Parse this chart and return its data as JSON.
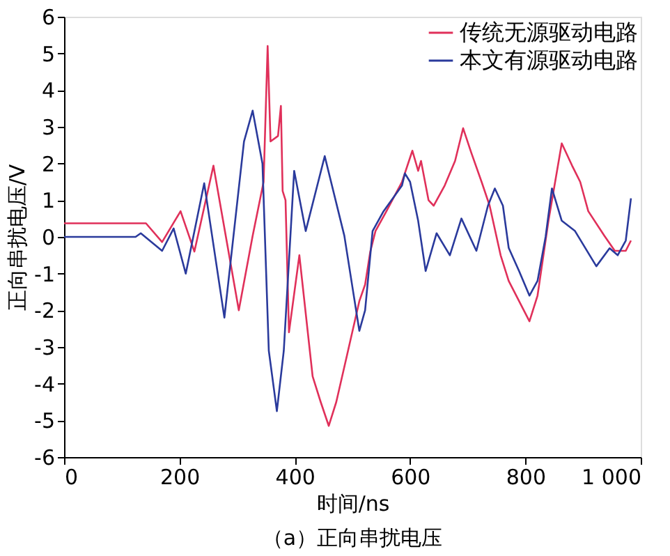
{
  "chart_data": {
    "type": "line",
    "xlabel": "时间/ns",
    "ylabel": "正向串扰电压/V",
    "annotations": [
      "（a）正向串扰电压"
    ],
    "xlim": [
      0,
      1000
    ],
    "xticks": [
      0,
      200,
      400,
      600,
      800,
      {
        "value": 1000,
        "label": "1 000"
      }
    ],
    "ylim": [
      -6,
      6
    ],
    "yticks": [
      -6,
      -5,
      -4,
      -3,
      -2,
      -1,
      0,
      1,
      2,
      3,
      4,
      5,
      6
    ],
    "grid": false,
    "legend": "top right",
    "line_style": "solid",
    "marker": "none",
    "series": [
      {
        "name": "传统无源驱动电路",
        "color": "#e0305a",
        "x": [
          0,
          142,
          170,
          202,
          226,
          259,
          303,
          327,
          346,
          353,
          358,
          371,
          376,
          379,
          384,
          390,
          408,
          431,
          445,
          459,
          472,
          491,
          512,
          522,
          531,
          540,
          559,
          586,
          604,
          614,
          619,
          632,
          641,
          660,
          678,
          692,
          706,
          724,
          738,
          757,
          771,
          789,
          807,
          821,
          840,
          863,
          881,
          895,
          909,
          937,
          955,
          974,
          983
        ],
        "values": [
          0.37,
          0.37,
          -0.14,
          0.7,
          -0.4,
          1.94,
          -2.0,
          0.03,
          1.5,
          5.2,
          2.6,
          2.75,
          3.57,
          1.25,
          1.0,
          -2.6,
          -0.5,
          -3.8,
          -4.5,
          -5.15,
          -4.5,
          -3.2,
          -1.75,
          -1.3,
          -0.4,
          0.16,
          0.7,
          1.5,
          2.35,
          1.8,
          2.07,
          1.0,
          0.85,
          1.4,
          2.07,
          2.96,
          2.3,
          1.5,
          0.85,
          -0.5,
          -1.2,
          -1.75,
          -2.3,
          -1.6,
          0.44,
          2.55,
          1.94,
          1.5,
          0.7,
          0.03,
          -0.38,
          -0.38,
          -0.1
        ]
      },
      {
        "name": "本文有源驱动电路",
        "color": "#2a3a9c",
        "x": [
          0,
          124,
          133,
          170,
          190,
          211,
          243,
          278,
          312,
          327,
          344,
          355,
          369,
          381,
          399,
          419,
          452,
          486,
          512,
          522,
          535,
          554,
          586,
          591,
          600,
          614,
          627,
          646,
          669,
          689,
          715,
          735,
          747,
          761,
          771,
          789,
          807,
          821,
          835,
          846,
          863,
          886,
          923,
          946,
          960,
          974,
          983
        ],
        "values": [
          0,
          0,
          0.1,
          -0.38,
          0.23,
          -1.0,
          1.46,
          -2.2,
          2.6,
          3.44,
          2.0,
          -3.1,
          -4.75,
          -3.1,
          1.8,
          0.16,
          2.2,
          0.03,
          -2.56,
          -2.0,
          0.16,
          0.7,
          1.4,
          1.73,
          1.5,
          0.44,
          -0.93,
          0.1,
          -0.5,
          0.5,
          -0.38,
          0.85,
          1.32,
          0.85,
          -0.3,
          -0.93,
          -1.6,
          -1.2,
          0.0,
          1.32,
          0.44,
          0.16,
          -0.8,
          -0.31,
          -0.5,
          -0.1,
          1.05
        ]
      }
    ]
  }
}
